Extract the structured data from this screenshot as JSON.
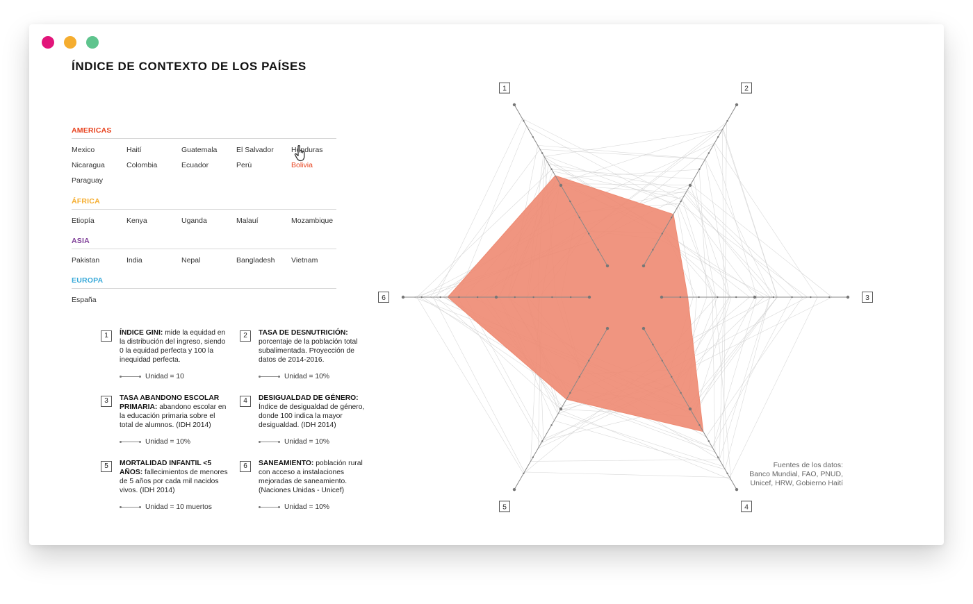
{
  "window": {
    "controls": [
      {
        "name": "close",
        "color": "#e2157a"
      },
      {
        "name": "minimize",
        "color": "#f5ad2f"
      },
      {
        "name": "maximize",
        "color": "#5ec48d"
      }
    ]
  },
  "title": "ÍNDICE DE CONTEXTO DE LOS PAÍSES",
  "regions": [
    {
      "name": "AMERICAS",
      "color": "#e8431f",
      "countries": [
        "Mexico",
        "Haití",
        "Guatemala",
        "El Salvador",
        "Honduras",
        "Nicaragua",
        "Colombia",
        "Ecuador",
        "Perù",
        "Bolivia",
        "Paraguay"
      ]
    },
    {
      "name": "ÁFRICA",
      "color": "#f5ad2f",
      "countries": [
        "Etiopía",
        "Kenya",
        "Uganda",
        "Malauí",
        "Mozambique"
      ]
    },
    {
      "name": "ASIA",
      "color": "#7f3f98",
      "countries": [
        "Pakistan",
        "India",
        "Nepal",
        "Bangladesh",
        "Vietnam"
      ]
    },
    {
      "name": "EUROPA",
      "color": "#38a9d9",
      "countries": [
        "España"
      ]
    }
  ],
  "selected_country": "Bolivia",
  "selected_color": "#e8431f",
  "cursor_icon": "hand-pointer-icon",
  "legend": [
    {
      "num": "1",
      "bold": "ÍNDICE GINI:",
      "text": " mide la equidad en la distribución del ingreso, siendo 0 la equidad perfecta y 100 la inequidad perfecta.",
      "unit": "Unidad = 10"
    },
    {
      "num": "2",
      "bold": "TASA DE DESNUTRICIÓN:",
      "text": " porcentaje de la población total subalimentada. Proyección de datos de 2014-2016.",
      "unit": "Unidad = 10%"
    },
    {
      "num": "3",
      "bold": "TASA ABANDONO ESCOLAR PRIMARIA:",
      "text": " abandono escolar en la educación primaria sobre el total de alumnos. (IDH 2014)",
      "unit": "Unidad = 10%"
    },
    {
      "num": "4",
      "bold": "DESIGUALDAD DE GÉNERO:",
      "text": " Índice de desigualdad de género, donde 100 indica la mayor desigualdad.  (IDH 2014)",
      "unit": "Unidad = 10%"
    },
    {
      "num": "5",
      "bold": "MORTALIDAD INFANTIL <5 AÑOS:",
      "text": " fallecimientos de menores de 5 años por cada mil nacidos vivos. (IDH 2014)",
      "unit": "Unidad = 10 muertos"
    },
    {
      "num": "6",
      "bold": "SANEAMIENTO:",
      "text": "  población rural con acceso a instalaciones mejoradas de saneamiento. (Naciones Unidas - Unicef)",
      "unit": "Unidad = 10%"
    }
  ],
  "sources": [
    "Fuentes de los datos:",
    "Banco Mundial, FAO, PNUD,",
    "Unicef, HRW, Gobierno Haití"
  ],
  "chart_data": {
    "type": "radar",
    "axes": [
      "1",
      "2",
      "3",
      "4",
      "5",
      "6"
    ],
    "axis_max": 10,
    "series": [
      {
        "name": "Bolivia",
        "values": [
          5.6,
          3.2,
          1.4,
          6.4,
          4.4,
          7.6
        ],
        "color": "#ee8a72"
      }
    ],
    "background_series_count": 27
  }
}
